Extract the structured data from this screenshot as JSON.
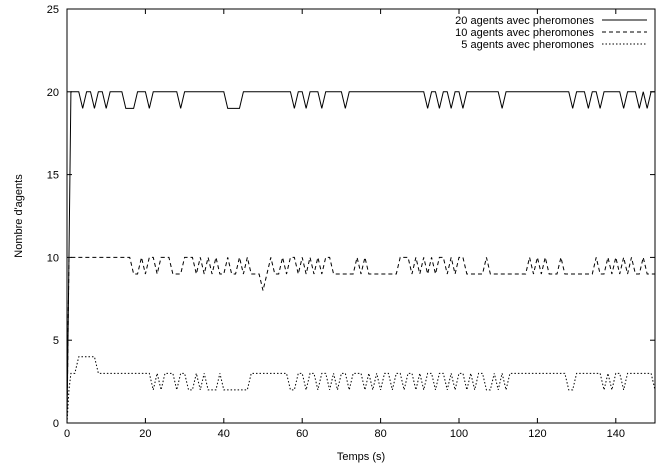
{
  "chart_data": {
    "type": "line",
    "title": "",
    "xlabel": "Temps (s)",
    "ylabel": "Nombre d'agents",
    "xlim": [
      0,
      150
    ],
    "ylim": [
      0,
      25
    ],
    "x_ticks": [
      0,
      20,
      40,
      60,
      80,
      100,
      120,
      140
    ],
    "y_ticks": [
      0,
      5,
      10,
      15,
      20,
      25
    ],
    "grid": false,
    "legend_position": "top-right",
    "series": [
      {
        "name": "20 agents avec pheromones",
        "dash": "solid",
        "points": [
          [
            0,
            0
          ],
          [
            1,
            20
          ],
          [
            3,
            20
          ],
          [
            4,
            19
          ],
          [
            5,
            20
          ],
          [
            6,
            20
          ],
          [
            7,
            19
          ],
          [
            8,
            20
          ],
          [
            9,
            20
          ],
          [
            10,
            19
          ],
          [
            11,
            20
          ],
          [
            14,
            20
          ],
          [
            15,
            19
          ],
          [
            17,
            19
          ],
          [
            18,
            20
          ],
          [
            20,
            20
          ],
          [
            21,
            19
          ],
          [
            22,
            20
          ],
          [
            28,
            20
          ],
          [
            29,
            19
          ],
          [
            30,
            20
          ],
          [
            40,
            20
          ],
          [
            41,
            19
          ],
          [
            44,
            19
          ],
          [
            45,
            20
          ],
          [
            57,
            20
          ],
          [
            58,
            19
          ],
          [
            59,
            20
          ],
          [
            60,
            20
          ],
          [
            61,
            19
          ],
          [
            62,
            20
          ],
          [
            64,
            20
          ],
          [
            65,
            19
          ],
          [
            66,
            20
          ],
          [
            70,
            20
          ],
          [
            71,
            19
          ],
          [
            72,
            20
          ],
          [
            73,
            20
          ],
          [
            91,
            20
          ],
          [
            92,
            19
          ],
          [
            93,
            20
          ],
          [
            94,
            20
          ],
          [
            95,
            19
          ],
          [
            96,
            20
          ],
          [
            97,
            20
          ],
          [
            98,
            19
          ],
          [
            99,
            20
          ],
          [
            100,
            20
          ],
          [
            101,
            19
          ],
          [
            102,
            20
          ],
          [
            110,
            20
          ],
          [
            111,
            19
          ],
          [
            112,
            20
          ],
          [
            113,
            20
          ],
          [
            128,
            20
          ],
          [
            129,
            19
          ],
          [
            130,
            20
          ],
          [
            132,
            20
          ],
          [
            133,
            19
          ],
          [
            134,
            20
          ],
          [
            135,
            20
          ],
          [
            136,
            19
          ],
          [
            137,
            20
          ],
          [
            141,
            20
          ],
          [
            142,
            19
          ],
          [
            143,
            20
          ],
          [
            145,
            20
          ],
          [
            146,
            19
          ],
          [
            147,
            20
          ],
          [
            148,
            19
          ],
          [
            149,
            20
          ],
          [
            150,
            20
          ]
        ]
      },
      {
        "name": "10 agents avec pheromones",
        "dash": "dashed",
        "points": [
          [
            0,
            0
          ],
          [
            0.5,
            10
          ],
          [
            16,
            10
          ],
          [
            17,
            9
          ],
          [
            18,
            9
          ],
          [
            19,
            10
          ],
          [
            20,
            9
          ],
          [
            21,
            10
          ],
          [
            22,
            10
          ],
          [
            23,
            9
          ],
          [
            24,
            10
          ],
          [
            26,
            10
          ],
          [
            27,
            9
          ],
          [
            29,
            9
          ],
          [
            30,
            10
          ],
          [
            32,
            10
          ],
          [
            33,
            9
          ],
          [
            34,
            10
          ],
          [
            35,
            9
          ],
          [
            36,
            10
          ],
          [
            37,
            9
          ],
          [
            38,
            10
          ],
          [
            39,
            9
          ],
          [
            40,
            9
          ],
          [
            41,
            10
          ],
          [
            42,
            9
          ],
          [
            43,
            9
          ],
          [
            44,
            10
          ],
          [
            45,
            9
          ],
          [
            46,
            10
          ],
          [
            47,
            9
          ],
          [
            48,
            9
          ],
          [
            49,
            9
          ],
          [
            50,
            8
          ],
          [
            51,
            9
          ],
          [
            52,
            10
          ],
          [
            53,
            9
          ],
          [
            54,
            9
          ],
          [
            55,
            10
          ],
          [
            56,
            9
          ],
          [
            57,
            10
          ],
          [
            58,
            10
          ],
          [
            59,
            9
          ],
          [
            60,
            10
          ],
          [
            61,
            9
          ],
          [
            62,
            10
          ],
          [
            63,
            9
          ],
          [
            64,
            10
          ],
          [
            65,
            9
          ],
          [
            66,
            10
          ],
          [
            67,
            10
          ],
          [
            68,
            9
          ],
          [
            73,
            9
          ],
          [
            74,
            10
          ],
          [
            75,
            9
          ],
          [
            76,
            10
          ],
          [
            77,
            9
          ],
          [
            84,
            9
          ],
          [
            85,
            10
          ],
          [
            87,
            10
          ],
          [
            88,
            9
          ],
          [
            89,
            10
          ],
          [
            90,
            9
          ],
          [
            91,
            10
          ],
          [
            92,
            9
          ],
          [
            93,
            10
          ],
          [
            94,
            9
          ],
          [
            95,
            10
          ],
          [
            96,
            10
          ],
          [
            97,
            9
          ],
          [
            98,
            10
          ],
          [
            99,
            9
          ],
          [
            100,
            10
          ],
          [
            101,
            10
          ],
          [
            102,
            9
          ],
          [
            106,
            9
          ],
          [
            107,
            10
          ],
          [
            108,
            9
          ],
          [
            117,
            9
          ],
          [
            118,
            10
          ],
          [
            119,
            9
          ],
          [
            120,
            10
          ],
          [
            121,
            9
          ],
          [
            122,
            10
          ],
          [
            123,
            9
          ],
          [
            125,
            9
          ],
          [
            126,
            10
          ],
          [
            127,
            9
          ],
          [
            134,
            9
          ],
          [
            135,
            10
          ],
          [
            136,
            9
          ],
          [
            137,
            9
          ],
          [
            138,
            10
          ],
          [
            139,
            9
          ],
          [
            140,
            10
          ],
          [
            141,
            9
          ],
          [
            142,
            10
          ],
          [
            143,
            9
          ],
          [
            144,
            10
          ],
          [
            145,
            9
          ],
          [
            146,
            9
          ],
          [
            147,
            10
          ],
          [
            148,
            9
          ],
          [
            150,
            9
          ]
        ]
      },
      {
        "name": "5 agents avec pheromones",
        "dash": "dotted",
        "points": [
          [
            0,
            0
          ],
          [
            0.5,
            2
          ],
          [
            1,
            3
          ],
          [
            2,
            3
          ],
          [
            3,
            4
          ],
          [
            7,
            4
          ],
          [
            8,
            3
          ],
          [
            21,
            3
          ],
          [
            22,
            2
          ],
          [
            23,
            3
          ],
          [
            24,
            2
          ],
          [
            25,
            3
          ],
          [
            27,
            3
          ],
          [
            28,
            2
          ],
          [
            29,
            3
          ],
          [
            30,
            3
          ],
          [
            31,
            2
          ],
          [
            32,
            2
          ],
          [
            33,
            3
          ],
          [
            34,
            2
          ],
          [
            35,
            3
          ],
          [
            36,
            2
          ],
          [
            37,
            2
          ],
          [
            38,
            2
          ],
          [
            39,
            3
          ],
          [
            40,
            2
          ],
          [
            45,
            2
          ],
          [
            46,
            2
          ],
          [
            47,
            3
          ],
          [
            48,
            3
          ],
          [
            49,
            3
          ],
          [
            50,
            3
          ],
          [
            51,
            3
          ],
          [
            52,
            3
          ],
          [
            53,
            3
          ],
          [
            54,
            3
          ],
          [
            55,
            3
          ],
          [
            56,
            3
          ],
          [
            57,
            2
          ],
          [
            58,
            2
          ],
          [
            59,
            3
          ],
          [
            60,
            3
          ],
          [
            61,
            2
          ],
          [
            62,
            3
          ],
          [
            63,
            3
          ],
          [
            64,
            2
          ],
          [
            65,
            3
          ],
          [
            66,
            3
          ],
          [
            67,
            2
          ],
          [
            68,
            3
          ],
          [
            69,
            2
          ],
          [
            70,
            3
          ],
          [
            71,
            3
          ],
          [
            72,
            2
          ],
          [
            73,
            3
          ],
          [
            75,
            3
          ],
          [
            76,
            2
          ],
          [
            77,
            3
          ],
          [
            78,
            2
          ],
          [
            79,
            3
          ],
          [
            80,
            2
          ],
          [
            81,
            3
          ],
          [
            82,
            3
          ],
          [
            83,
            2
          ],
          [
            84,
            3
          ],
          [
            85,
            3
          ],
          [
            86,
            2
          ],
          [
            87,
            3
          ],
          [
            88,
            3
          ],
          [
            89,
            2
          ],
          [
            90,
            3
          ],
          [
            91,
            2
          ],
          [
            92,
            3
          ],
          [
            93,
            3
          ],
          [
            94,
            2
          ],
          [
            95,
            3
          ],
          [
            96,
            3
          ],
          [
            97,
            2
          ],
          [
            98,
            3
          ],
          [
            99,
            2
          ],
          [
            100,
            3
          ],
          [
            101,
            3
          ],
          [
            102,
            2
          ],
          [
            103,
            3
          ],
          [
            104,
            2
          ],
          [
            105,
            3
          ],
          [
            106,
            3
          ],
          [
            107,
            2
          ],
          [
            108,
            2
          ],
          [
            109,
            3
          ],
          [
            110,
            2
          ],
          [
            111,
            3
          ],
          [
            112,
            2
          ],
          [
            113,
            3
          ],
          [
            114,
            3
          ],
          [
            115,
            3
          ],
          [
            116,
            3
          ],
          [
            117,
            3
          ],
          [
            118,
            3
          ],
          [
            119,
            3
          ],
          [
            120,
            3
          ],
          [
            121,
            3
          ],
          [
            122,
            3
          ],
          [
            123,
            3
          ],
          [
            124,
            3
          ],
          [
            125,
            3
          ],
          [
            126,
            3
          ],
          [
            127,
            3
          ],
          [
            128,
            2
          ],
          [
            129,
            2
          ],
          [
            130,
            3
          ],
          [
            131,
            3
          ],
          [
            132,
            3
          ],
          [
            133,
            3
          ],
          [
            134,
            3
          ],
          [
            135,
            3
          ],
          [
            136,
            3
          ],
          [
            137,
            2
          ],
          [
            138,
            3
          ],
          [
            139,
            2
          ],
          [
            140,
            3
          ],
          [
            141,
            3
          ],
          [
            142,
            2
          ],
          [
            143,
            3
          ],
          [
            144,
            3
          ],
          [
            145,
            3
          ],
          [
            146,
            3
          ],
          [
            147,
            3
          ],
          [
            148,
            3
          ],
          [
            149,
            3
          ],
          [
            150,
            2
          ]
        ]
      }
    ]
  }
}
